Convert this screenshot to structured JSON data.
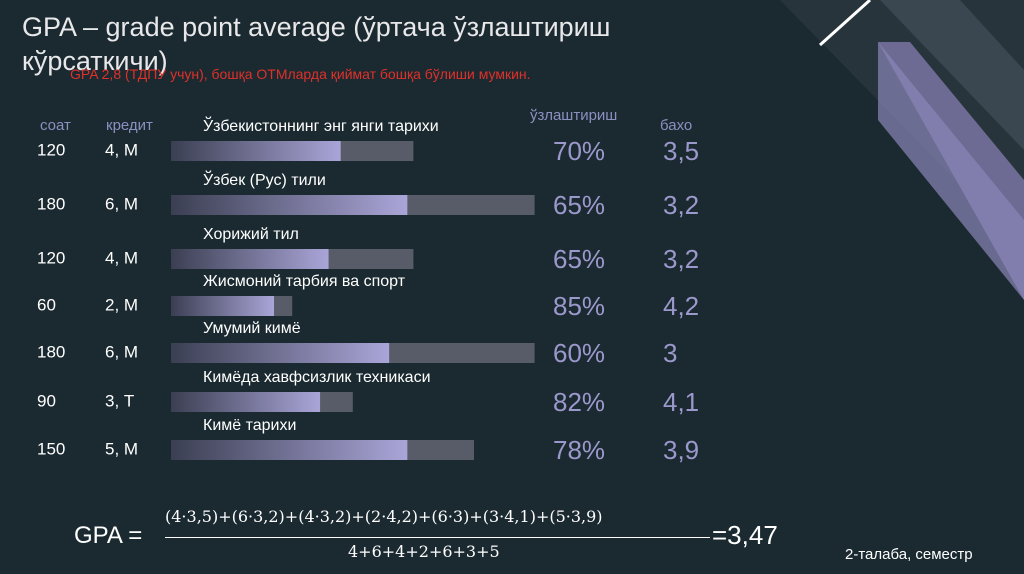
{
  "title": "GPA – grade point average (ўртача ўзлаштириш кўрсаткичи)",
  "note": "GPA 2,8 (ТДПУ учун), бошқа ОТМларда қиймат бошқа бўлиши мумкин.",
  "headers": {
    "hours": "соат",
    "credit": "кредит",
    "progress": "ўзлаштириш",
    "grade": "бахо"
  },
  "rows": [
    {
      "hours": 120,
      "credit": "4, М",
      "course": "Ўзбекистоннинг энг янги тарихи",
      "progress": {
        "value": 70,
        "label": "70%"
      },
      "grade": "3,5"
    },
    {
      "hours": 180,
      "credit": "6, М",
      "course": "Ўзбек (Рус) тили",
      "progress": {
        "value": 65,
        "label": "65%"
      },
      "grade": "3,2"
    },
    {
      "hours": 120,
      "credit": "4, М",
      "course": "Хорижий тил",
      "progress": {
        "value": 65,
        "label": "65%"
      },
      "grade": "3,2"
    },
    {
      "hours": 60,
      "credit": "2, М",
      "course": "Жисмоний тарбия ва спорт",
      "progress": {
        "value": 85,
        "label": "85%"
      },
      "grade": "4,2"
    },
    {
      "hours": 180,
      "credit": "6, М",
      "course": "Умумий кимё",
      "progress": {
        "value": 60,
        "label": "60%"
      },
      "grade": "3"
    },
    {
      "hours": 90,
      "credit": "3, Т",
      "course": "Кимёда хавфсизлик техникаси",
      "progress": {
        "value": 82,
        "label": "82%"
      },
      "grade": "4,1"
    },
    {
      "hours": 150,
      "credit": "5, М",
      "course": "Кимё тарихи",
      "progress": {
        "value": 78,
        "label": "78%"
      },
      "grade": "3,9"
    }
  ],
  "formula": {
    "lhs": "GPA =",
    "numerator": "(4·3,5)+(6·3,2)+(4·3,2)+(2·4,2)+(6·3)+(3·4,1)+(5·3,9)",
    "denominator": "4+6+4+2+6+3+5",
    "result": "=3,47"
  },
  "footer": "2-талаба, семестр"
}
